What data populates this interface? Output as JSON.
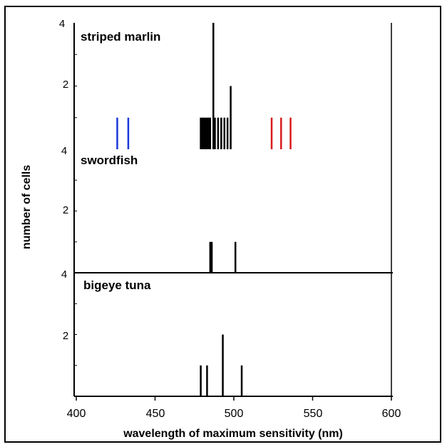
{
  "chart_data": {
    "type": "bar",
    "xlabel": "wavelength of maximum sensitivity (nm)",
    "ylabel": "number of cells",
    "xlim": [
      400,
      600
    ],
    "x_ticks": [
      "400",
      "450",
      "500",
      "550",
      "600"
    ],
    "y_ticks": [
      "2",
      "4"
    ],
    "colors": {
      "default": "#000000",
      "blue": "#1a35d8",
      "red": "#d81a1a"
    },
    "panels": [
      {
        "title": "striped marlin",
        "ylim": [
          0,
          4
        ],
        "bars": [
          {
            "x": 426,
            "y": 1,
            "color": "blue"
          },
          {
            "x": 433,
            "y": 1,
            "color": "blue"
          },
          {
            "x": 479,
            "y": 1
          },
          {
            "x": 480,
            "y": 1
          },
          {
            "x": 481,
            "y": 1
          },
          {
            "x": 482,
            "y": 1
          },
          {
            "x": 483,
            "y": 1
          },
          {
            "x": 484,
            "y": 1
          },
          {
            "x": 485,
            "y": 1
          },
          {
            "x": 487,
            "y": 4
          },
          {
            "x": 488,
            "y": 1
          },
          {
            "x": 490,
            "y": 1
          },
          {
            "x": 492,
            "y": 1
          },
          {
            "x": 494,
            "y": 1
          },
          {
            "x": 496,
            "y": 1
          },
          {
            "x": 498,
            "y": 2
          },
          {
            "x": 524,
            "y": 1,
            "color": "red"
          },
          {
            "x": 530,
            "y": 1,
            "color": "red"
          },
          {
            "x": 536,
            "y": 1,
            "color": "red"
          }
        ]
      },
      {
        "title": "swordfish",
        "ylim": [
          0,
          4
        ],
        "bars": [
          {
            "x": 485,
            "y": 1
          },
          {
            "x": 486,
            "y": 1
          },
          {
            "x": 501,
            "y": 1
          }
        ]
      },
      {
        "title": "bigeye tuna",
        "ylim": [
          0,
          4
        ],
        "bars": [
          {
            "x": 479,
            "y": 1
          },
          {
            "x": 483,
            "y": 1
          },
          {
            "x": 493,
            "y": 2
          },
          {
            "x": 505,
            "y": 1
          }
        ]
      }
    ]
  }
}
